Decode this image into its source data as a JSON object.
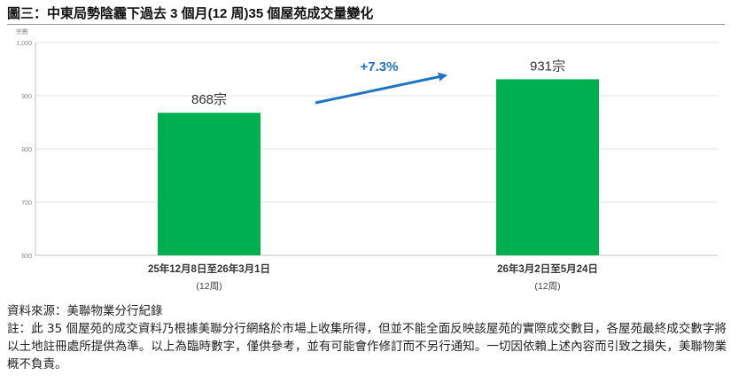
{
  "title": "圖三：中東局勢陰霾下過去 3 個月(12 周)35 個屋苑成交量變化",
  "chart_data": {
    "type": "bar",
    "ylabel": "宗數",
    "ylim": [
      600,
      1000
    ],
    "yticks": [
      "600",
      "700",
      "800",
      "900",
      "1,000"
    ],
    "categories": [
      "25年12月8日至26年3月1日",
      "26年3月2日至5月24日"
    ],
    "sublabels": [
      "(12周)",
      "(12周)"
    ],
    "values": [
      868,
      931
    ],
    "data_labels": [
      "868宗",
      "931宗"
    ],
    "annotation": "+7.3%",
    "bar_color": "#00B050",
    "annotation_color": "#1F73C4"
  },
  "source": "資料來源：美聯物業分行紀錄",
  "note": "註：此 35 個屋苑的成交資料乃根據美聯分行網絡於市場上收集所得，但並不能全面反映該屋苑的實際成交數目，各屋苑最終成交數字將以土地註冊處所提供為準。以上為臨時數字，僅供參考，並有可能會作修訂而不另行通知。一切因依賴上述內容而引致之損失，美聯物業概不負責。"
}
